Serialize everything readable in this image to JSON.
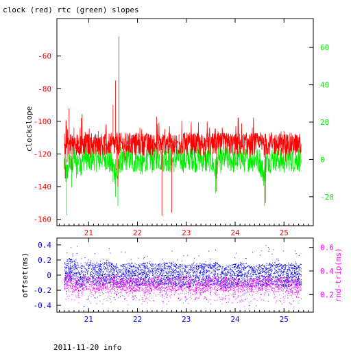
{
  "chart_data": [
    {
      "type": "line",
      "title": "clock (red) rtc (green) slopes",
      "ylabel": "clockslope",
      "xlabel": "",
      "x_ticks": [
        "21",
        "22",
        "23",
        "24",
        "25"
      ],
      "xlim": [
        20.35,
        25.6
      ],
      "ylim": [
        -164,
        -37
      ],
      "y_ticks": [
        "-60",
        "-80",
        "-100",
        "-120",
        "-140",
        "-160"
      ],
      "y2lim": [
        -35.5,
        75.5
      ],
      "y2_ticks": [
        "60",
        "40",
        "20",
        "0",
        "-20"
      ],
      "grid": false,
      "colors": {
        "clock": "#ff0000",
        "rtc": "#00ee00",
        "axis": "#000000"
      },
      "series": [
        {
          "name": "clock",
          "axis": "left",
          "x": [
            20.5,
            20.52,
            20.54,
            20.56,
            20.58,
            20.6,
            20.62,
            20.64,
            20.66,
            20.68,
            20.7,
            20.75,
            20.8,
            20.85,
            20.9,
            20.95,
            21.0,
            21.05,
            21.1,
            21.15,
            21.2,
            21.25,
            21.3,
            21.35,
            21.4,
            21.45,
            21.5,
            21.52,
            21.55,
            21.58,
            21.6,
            21.62,
            21.65,
            21.7,
            21.75,
            21.8,
            21.85,
            21.9,
            21.95,
            22.0,
            22.05,
            22.1,
            22.15,
            22.2,
            22.25,
            22.3,
            22.35,
            22.4,
            22.45,
            22.5,
            22.52,
            22.55,
            22.6,
            22.65,
            22.7,
            22.72,
            22.75,
            22.8,
            22.85,
            22.9,
            22.95,
            23.0,
            23.05,
            23.1,
            23.15,
            23.2,
            23.25,
            23.3,
            23.35,
            23.4,
            23.45,
            23.5,
            23.55,
            23.6,
            23.62,
            23.65,
            23.7,
            23.75,
            23.8,
            23.85,
            23.9,
            23.95,
            24.0,
            24.05,
            24.1,
            24.15,
            24.2,
            24.25,
            24.3,
            24.35,
            24.4,
            24.45,
            24.5,
            24.55,
            24.6,
            24.62,
            24.65,
            24.7,
            24.75,
            24.8,
            24.85,
            24.9,
            24.95,
            25.0,
            25.05,
            25.1,
            25.15,
            25.2,
            25.25,
            25.3,
            25.35
          ],
          "y": [
            -115,
            -135,
            -100,
            -125,
            -110,
            -92,
            -118,
            -108,
            -130,
            -112,
            -104,
            -120,
            -110,
            -98,
            -118,
            -114,
            -108,
            -122,
            -112,
            -116,
            -106,
            -118,
            -110,
            -120,
            -112,
            -115,
            -90,
            -120,
            -75,
            -130,
            -140,
            -48,
            -118,
            -110,
            -124,
            -112,
            -108,
            -120,
            -116,
            -112,
            -104,
            -120,
            -114,
            -118,
            -110,
            -122,
            -116,
            -112,
            -118,
            -158,
            -108,
            -120,
            -110,
            -116,
            -156,
            -118,
            -112,
            -120,
            -108,
            -116,
            -114,
            -118,
            -110,
            -120,
            -112,
            -116,
            -108,
            -118,
            -114,
            -112,
            -120,
            -116,
            -110,
            -118,
            -143,
            -106,
            -120,
            -112,
            -116,
            -110,
            -118,
            -114,
            -108,
            -120,
            -112,
            -116,
            -110,
            -118,
            -112,
            -104,
            -120,
            -114,
            -116,
            -110,
            -118,
            -150,
            -112,
            -120,
            -108,
            -116,
            -112,
            -118,
            -110,
            -106,
            -120,
            -114,
            -116,
            -110,
            -118,
            -112,
            -116
          ]
        },
        {
          "name": "rtc",
          "axis": "right",
          "x": [
            20.5,
            20.55,
            20.6,
            20.65,
            20.7,
            20.75,
            20.8,
            20.85,
            20.9,
            20.95,
            21.0,
            21.1,
            21.2,
            21.3,
            21.4,
            21.5,
            21.55,
            21.6,
            21.65,
            21.7,
            21.8,
            21.9,
            22.0,
            22.1,
            22.2,
            22.3,
            22.4,
            22.5,
            22.6,
            22.7,
            22.8,
            22.9,
            23.0,
            23.1,
            23.2,
            23.3,
            23.4,
            23.5,
            23.6,
            23.65,
            23.7,
            23.8,
            23.9,
            24.0,
            24.1,
            24.2,
            24.3,
            24.4,
            24.5,
            24.6,
            24.65,
            24.7,
            24.8,
            24.9,
            25.0,
            25.1,
            25.2,
            25.3,
            25.35
          ],
          "y": [
            -5,
            -30,
            5,
            -15,
            8,
            -10,
            4,
            -8,
            2,
            6,
            -4,
            3,
            -2,
            5,
            0,
            -12,
            -20,
            -25,
            2,
            -6,
            4,
            -3,
            1,
            -8,
            3,
            -2,
            5,
            -1,
            2,
            -4,
            3,
            0,
            -2,
            4,
            -1,
            2,
            -3,
            1,
            -18,
            3,
            -2,
            2,
            0,
            -3,
            3,
            -1,
            2,
            0,
            -2,
            -25,
            3,
            -1,
            2,
            0,
            -3,
            2,
            0,
            1,
            -2
          ]
        }
      ]
    },
    {
      "type": "scatter",
      "xlabel": "",
      "ylabel": "offset(ms)",
      "y2label": "rnd-trip(ms)",
      "x_ticks": [
        "21",
        "22",
        "23",
        "24",
        "25"
      ],
      "xlim": [
        20.35,
        25.6
      ],
      "ylim": [
        -0.49,
        0.49
      ],
      "y_ticks": [
        "0.4",
        "0.2",
        "0",
        "-0.2",
        "-0.4"
      ],
      "y2lim": [
        0.05,
        0.68
      ],
      "y2_ticks": [
        "0.6",
        "0.4",
        "0.2"
      ],
      "grid": false,
      "colors": {
        "offset": "#0000ff",
        "rndtrip": "#ff00ff",
        "axis": "#000000"
      },
      "series": [
        {
          "name": "offset",
          "axis": "left",
          "x": [
            20.5,
            20.6,
            20.7,
            20.8,
            20.9,
            21.0,
            21.2,
            21.4,
            21.6,
            21.8,
            22.0,
            22.2,
            22.4,
            22.6,
            22.8,
            23.0,
            23.2,
            23.4,
            23.6,
            23.8,
            24.0,
            24.2,
            24.4,
            24.6,
            24.8,
            25.0,
            25.2,
            25.35
          ],
          "y": [
            0.02,
            0.08,
            0.05,
            0.0,
            -0.03,
            0.04,
            0.0,
            0.03,
            -0.02,
            0.01,
            0.0,
            0.02,
            -0.01,
            0.03,
            0.0,
            -0.02,
            0.01,
            0.0,
            0.02,
            -0.03,
            0.0,
            0.01,
            -0.02,
            0.0,
            0.02,
            -0.01,
            0.0,
            0.01
          ]
        },
        {
          "name": "rnd-trip",
          "axis": "right",
          "x": [
            20.5,
            20.6,
            20.7,
            20.8,
            20.9,
            21.0,
            21.2,
            21.4,
            21.6,
            21.8,
            22.0,
            22.2,
            22.4,
            22.6,
            22.8,
            23.0,
            23.2,
            23.4,
            23.6,
            23.8,
            24.0,
            24.2,
            24.4,
            24.6,
            24.8,
            25.0,
            25.2,
            25.35
          ],
          "y": [
            0.3,
            0.32,
            0.28,
            0.27,
            0.3,
            0.29,
            0.28,
            0.3,
            0.31,
            0.28,
            0.29,
            0.27,
            0.3,
            0.28,
            0.29,
            0.3,
            0.27,
            0.28,
            0.3,
            0.29,
            0.28,
            0.27,
            0.29,
            0.3,
            0.28,
            0.29,
            0.27,
            0.28
          ]
        }
      ]
    }
  ],
  "footer": "2011-11-20 info"
}
